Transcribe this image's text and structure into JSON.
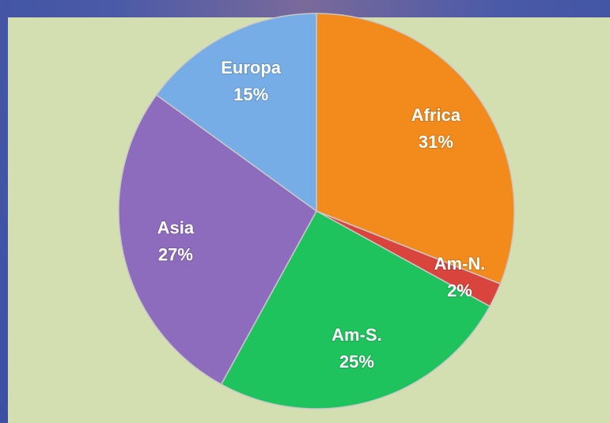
{
  "chart_data": {
    "type": "pie",
    "categories": [
      "Africa",
      "Am-N.",
      "Am-S.",
      "Asia",
      "Europa"
    ],
    "values": [
      31,
      2,
      25,
      27,
      15
    ],
    "value_labels": [
      "31%",
      "2%",
      "25%",
      "27%",
      "15%"
    ],
    "colors": [
      "#f28b1c",
      "#d9453c",
      "#1fc35e",
      "#8d6cbd",
      "#76ade6"
    ],
    "start_angle": 0,
    "direction": "clockwise"
  }
}
